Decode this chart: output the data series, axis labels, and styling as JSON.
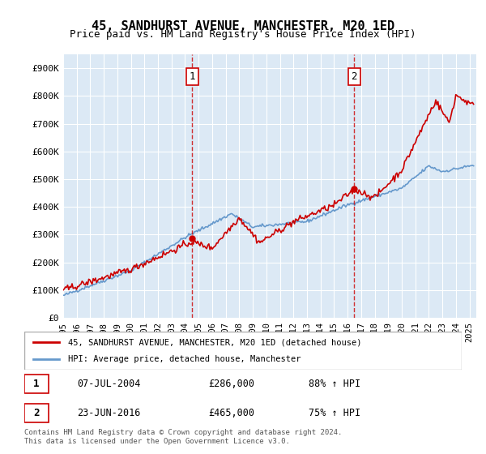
{
  "title": "45, SANDHURST AVENUE, MANCHESTER, M20 1ED",
  "subtitle": "Price paid vs. HM Land Registry's House Price Index (HPI)",
  "ylabel": "",
  "bg_color": "#dce9f5",
  "plot_bg": "#dce9f5",
  "red_color": "#cc0000",
  "blue_color": "#6699cc",
  "ylim": [
    0,
    950000
  ],
  "yticks": [
    0,
    100000,
    200000,
    300000,
    400000,
    500000,
    600000,
    700000,
    800000,
    900000
  ],
  "ytick_labels": [
    "£0",
    "£100K",
    "£200K",
    "£300K",
    "£400K",
    "£500K",
    "£600K",
    "£700K",
    "£800K",
    "£900K"
  ],
  "annotation1": {
    "x_year": 2004.52,
    "y": 286000,
    "label": "1"
  },
  "annotation2": {
    "x_year": 2016.48,
    "y": 465000,
    "label": "2"
  },
  "legend_line1": "45, SANDHURST AVENUE, MANCHESTER, M20 1ED (detached house)",
  "legend_line2": "HPI: Average price, detached house, Manchester",
  "table_row1": [
    "1",
    "07-JUL-2004",
    "£286,000",
    "88% ↑ HPI"
  ],
  "table_row2": [
    "2",
    "23-JUN-2016",
    "£465,000",
    "75% ↑ HPI"
  ],
  "footnote": "Contains HM Land Registry data © Crown copyright and database right 2024.\nThis data is licensed under the Open Government Licence v3.0.",
  "xmin": 1995.0,
  "xmax": 2025.5
}
